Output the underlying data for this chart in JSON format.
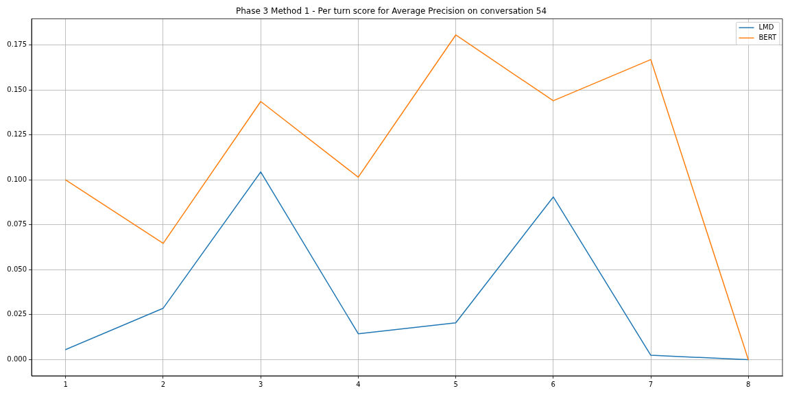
{
  "chart_data": {
    "type": "line",
    "title": "Phase 3 Method 1 - Per turn score for Average Precision on conversation 54",
    "x": [
      1,
      2,
      3,
      4,
      5,
      6,
      7,
      8
    ],
    "series": [
      {
        "name": "LMD",
        "color": "#1f77b4",
        "values": [
          0.0056,
          0.0286,
          0.1044,
          0.0144,
          0.0205,
          0.0905,
          0.0024,
          0.0
        ]
      },
      {
        "name": "BERT",
        "color": "#ff7f0e",
        "values": [
          0.1,
          0.0647,
          0.1436,
          0.1015,
          0.1806,
          0.144,
          0.1669,
          0.0
        ]
      }
    ],
    "xlim": [
      0.65,
      8.35
    ],
    "xticks": [
      1,
      2,
      3,
      4,
      5,
      6,
      7,
      8
    ],
    "ylim": [
      -0.009,
      0.1896
    ],
    "yticks": [
      {
        "value": 0,
        "label": "0.000"
      },
      0.025,
      {
        "value": 0.05,
        "label": "0.050"
      },
      0.075,
      {
        "value": 0.1,
        "label": "0.100"
      },
      0.125,
      {
        "value": 0.15,
        "label": "0.150"
      },
      0.175
    ],
    "grid": true,
    "legend": "top right"
  }
}
